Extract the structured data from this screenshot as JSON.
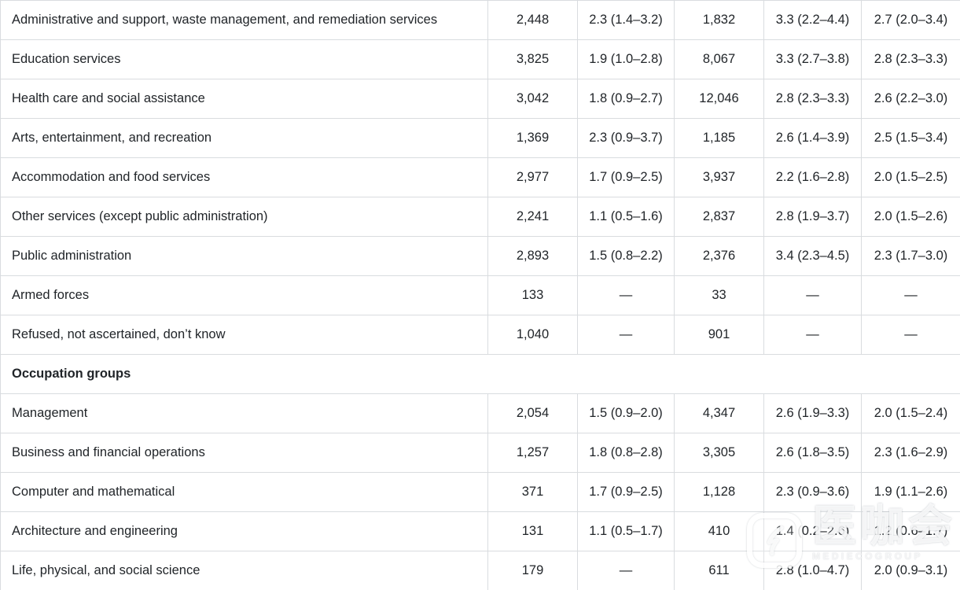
{
  "table": {
    "rows": [
      {
        "type": "data",
        "label": "Administrative and support, waste management, and remediation services",
        "cells": [
          "2,448",
          "2.3 (1.4–3.2)",
          "1,832",
          "3.3 (2.2–4.4)",
          "2.7 (2.0–3.4)"
        ]
      },
      {
        "type": "data",
        "label": "Education services",
        "cells": [
          "3,825",
          "1.9 (1.0–2.8)",
          "8,067",
          "3.3 (2.7–3.8)",
          "2.8 (2.3–3.3)"
        ]
      },
      {
        "type": "data",
        "label": "Health care and social assistance",
        "cells": [
          "3,042",
          "1.8 (0.9–2.7)",
          "12,046",
          "2.8 (2.3–3.3)",
          "2.6 (2.2–3.0)"
        ]
      },
      {
        "type": "data",
        "label": "Arts, entertainment, and recreation",
        "cells": [
          "1,369",
          "2.3 (0.9–3.7)",
          "1,185",
          "2.6 (1.4–3.9)",
          "2.5 (1.5–3.4)"
        ]
      },
      {
        "type": "data",
        "label": "Accommodation and food services",
        "cells": [
          "2,977",
          "1.7 (0.9–2.5)",
          "3,937",
          "2.2 (1.6–2.8)",
          "2.0 (1.5–2.5)"
        ]
      },
      {
        "type": "data",
        "label": "Other services (except public administration)",
        "cells": [
          "2,241",
          "1.1 (0.5–1.6)",
          "2,837",
          "2.8 (1.9–3.7)",
          "2.0 (1.5–2.6)"
        ]
      },
      {
        "type": "data",
        "label": "Public administration",
        "cells": [
          "2,893",
          "1.5 (0.8–2.2)",
          "2,376",
          "3.4 (2.3–4.5)",
          "2.3 (1.7–3.0)"
        ]
      },
      {
        "type": "data",
        "label": "Armed forces",
        "cells": [
          "133",
          "—",
          "33",
          "—",
          "—"
        ]
      },
      {
        "type": "data",
        "label": "Refused, not ascertained, don’t know",
        "cells": [
          "1,040",
          "—",
          "901",
          "—",
          "—"
        ]
      },
      {
        "type": "section",
        "label": "Occupation groups"
      },
      {
        "type": "data",
        "label": "Management",
        "cells": [
          "2,054",
          "1.5 (0.9–2.0)",
          "4,347",
          "2.6 (1.9–3.3)",
          "2.0 (1.5–2.4)"
        ]
      },
      {
        "type": "data",
        "label": "Business and financial operations",
        "cells": [
          "1,257",
          "1.8 (0.8–2.8)",
          "3,305",
          "2.6 (1.8–3.5)",
          "2.3 (1.6–2.9)"
        ]
      },
      {
        "type": "data",
        "label": "Computer and mathematical",
        "cells": [
          "371",
          "1.7 (0.9–2.5)",
          "1,128",
          "2.3 (0.9–3.6)",
          "1.9 (1.1–2.6)"
        ]
      },
      {
        "type": "data",
        "label": "Architecture and engineering",
        "cells": [
          "131",
          "1.1 (0.5–1.7)",
          "410",
          "1.4 (0.2–2.6)",
          "1.2 (0.6–1.7)"
        ]
      },
      {
        "type": "data",
        "label": "Life, physical, and social science",
        "cells": [
          "179",
          "—",
          "611",
          "2.8 (1.0–4.7)",
          "2.0 (0.9–3.1)"
        ]
      }
    ]
  },
  "watermark": {
    "text": "医咖会",
    "subtext": "MEDIECOGROUP"
  }
}
